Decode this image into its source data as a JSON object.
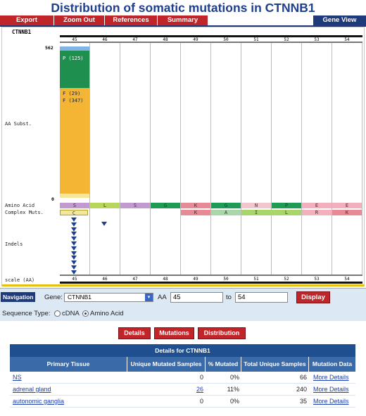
{
  "page": {
    "title": "Distribution of somatic mutations in CTNNB1"
  },
  "tabs": {
    "export": "Export",
    "zoom_out": "Zoom Out",
    "references": "References",
    "summary": "Summary",
    "gene_view": "Gene View"
  },
  "chart": {
    "gene": "CTNNB1",
    "y_max_label": "562",
    "y_min_label": "0",
    "columns": [
      "45",
      "46",
      "47",
      "48",
      "49",
      "50",
      "51",
      "52",
      "53",
      "54"
    ],
    "row_labels": {
      "aa_subst": "AA Subst.",
      "amino_acid": "Amino Acid",
      "complex_muts": "Complex Muts.",
      "indels": "Indels",
      "scale": "scale (AA)"
    },
    "bar_labels": [
      "P (125)",
      "F (29)",
      "F (347)"
    ],
    "amino_acids": [
      {
        "letter": "S",
        "color": "#c39ad0"
      },
      {
        "letter": "L",
        "color": "#b8d65a"
      },
      {
        "letter": "S",
        "color": "#c39ad0"
      },
      {
        "letter": "G",
        "color": "#1e9c55"
      },
      {
        "letter": "K",
        "color": "#e88a96"
      },
      {
        "letter": "G",
        "color": "#1e9c55"
      },
      {
        "letter": "N",
        "color": "#f2c6cf"
      },
      {
        "letter": "P",
        "color": "#1e9c55"
      },
      {
        "letter": "E",
        "color": "#f2b0bc"
      },
      {
        "letter": "E",
        "color": "#f2b0bc"
      }
    ],
    "complex_muts": [
      {
        "letter": "C",
        "color": "#f3e79a"
      },
      {
        "letter": "",
        "color": ""
      },
      {
        "letter": "",
        "color": ""
      },
      {
        "letter": "",
        "color": ""
      },
      {
        "letter": "K",
        "color": "#e88a96"
      },
      {
        "letter": "A",
        "color": "#a8d8a8"
      },
      {
        "letter": "I",
        "color": "#a8d66a"
      },
      {
        "letter": "L",
        "color": "#a8d66a"
      },
      {
        "letter": "R",
        "color": "#f2b0bc"
      },
      {
        "letter": "K",
        "color": "#e88a96"
      }
    ],
    "colors": {
      "bar_blue": "#7fb4e6",
      "bar_green": "#1e8f4e",
      "bar_orange": "#f3b533",
      "bar_pale": "#f6e69b",
      "indel": "#1f3f8f"
    }
  },
  "chart_data": {
    "type": "bar",
    "categories": [
      "45",
      "46",
      "47",
      "48",
      "49",
      "50",
      "51",
      "52",
      "53",
      "54"
    ],
    "series": [
      {
        "name": "",
        "values": [
          562,
          0,
          0,
          0,
          0,
          0,
          0,
          0,
          0,
          0
        ]
      }
    ],
    "ylabel": "AA Subst.",
    "xlabel": "scale (AA)",
    "ylim": [
      0,
      562
    ]
  },
  "navigation": {
    "badge": "Navigation",
    "gene_label": "Gene:",
    "gene_value": "CTNNB1",
    "aa_label": "AA",
    "from_value": "45",
    "to_label": "to",
    "to_value": "54",
    "display_button": "Display",
    "sequence_type_label": "Sequence Type:",
    "option_cdna": "cDNA",
    "option_amino": "Amino Acid"
  },
  "buttons": {
    "details": "Details",
    "mutations": "Mutations",
    "distribution": "Distribution"
  },
  "table": {
    "title": "Details for CTNNB1",
    "headers": [
      "Primary Tissue",
      "Unique Mutated Samples",
      "% Mutated",
      "Total Unique Samples",
      "Mutation Data"
    ],
    "rows": [
      {
        "tissue": "NS",
        "mutated": "0",
        "pct": "0%",
        "total": "66",
        "link": "More Details"
      },
      {
        "tissue": "adrenal gland",
        "mutated": "26",
        "pct": "11%",
        "total": "240",
        "link": "More Details"
      },
      {
        "tissue": "autonomic ganglia",
        "mutated": "0",
        "pct": "0%",
        "total": "35",
        "link": "More Details"
      }
    ]
  }
}
